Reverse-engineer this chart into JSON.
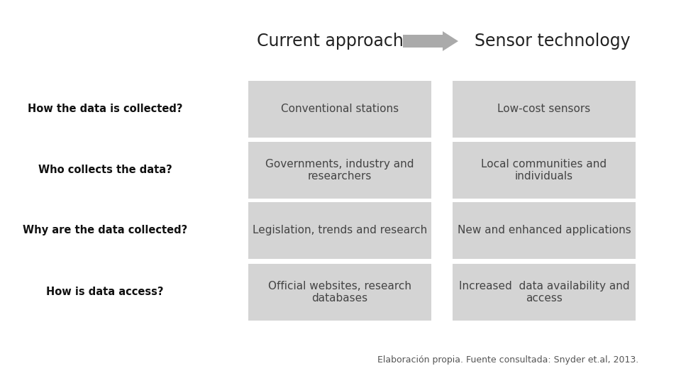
{
  "background_color": "#ffffff",
  "header_left": "Current approach",
  "header_right": "Sensor technology",
  "header_fontsize": 17,
  "rows": [
    {
      "question": "How the data is collected?",
      "current": "Conventional stations",
      "sensor": "Low-cost sensors"
    },
    {
      "question": "Who collects the data?",
      "current": "Governments, industry and\nresearchers",
      "sensor": "Local communities and\nindividuals"
    },
    {
      "question": "Why are the data collected?",
      "current": "Legislation, trends and research",
      "sensor": "New and enhanced applications"
    },
    {
      "question": "How is data access?",
      "current": "Official websites, research\ndatabases",
      "sensor": "Increased  data availability and\naccess"
    }
  ],
  "box_color": "#d4d4d4",
  "question_fontsize": 10.5,
  "cell_fontsize": 11,
  "footnote": "Elaboración propia. Fuente consultada: Snyder et.al, 2013.",
  "footnote_fontsize": 9
}
